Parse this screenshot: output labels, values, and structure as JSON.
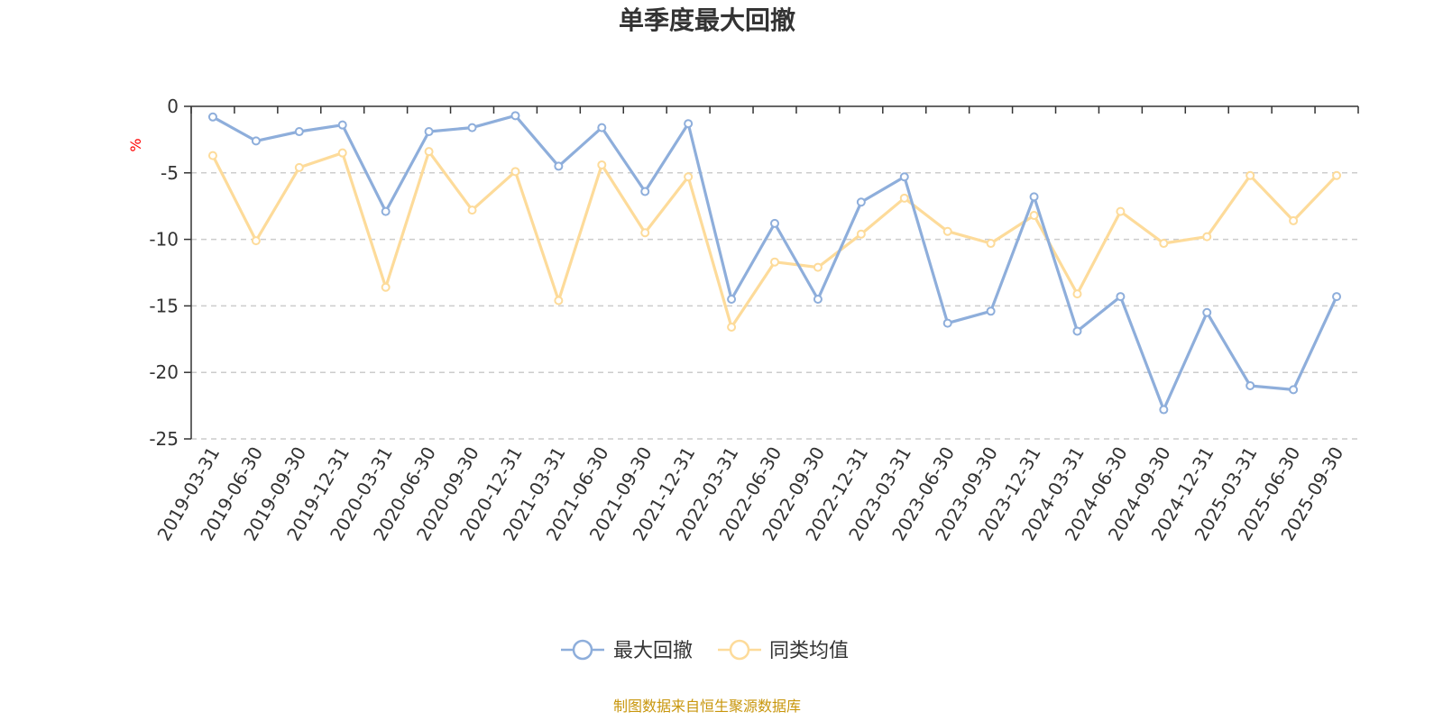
{
  "chart_data": {
    "type": "line",
    "title": "单季度最大回撤",
    "ylabel": "%",
    "xlabel": "",
    "ylim": [
      -25,
      0
    ],
    "yticks": [
      0,
      -5,
      -10,
      -15,
      -20,
      -25
    ],
    "grid": "horizontal-dashed",
    "legend_position": "bottom-center",
    "categories": [
      "2019-03-31",
      "2019-06-30",
      "2019-09-30",
      "2019-12-31",
      "2020-03-31",
      "2020-06-30",
      "2020-09-30",
      "2020-12-31",
      "2021-03-31",
      "2021-06-30",
      "2021-09-30",
      "2021-12-31",
      "2022-03-31",
      "2022-06-30",
      "2022-09-30",
      "2022-12-31",
      "2023-03-31",
      "2023-06-30",
      "2023-09-30",
      "2023-12-31",
      "2024-03-31",
      "2024-06-30",
      "2024-09-30",
      "2024-12-31",
      "2025-03-31",
      "2025-06-30",
      "2025-09-30"
    ],
    "series": [
      {
        "name": "最大回撤",
        "color": "#8eaedb",
        "values": [
          -0.8,
          -2.6,
          -1.9,
          -1.4,
          -7.9,
          -1.9,
          -1.6,
          -0.7,
          -4.5,
          -1.6,
          -6.4,
          -1.3,
          -14.5,
          -8.8,
          -14.5,
          -7.2,
          -5.3,
          -16.3,
          -15.4,
          -6.8,
          -16.9,
          -14.3,
          -22.8,
          -15.5,
          -21.0,
          -21.3,
          -14.3
        ]
      },
      {
        "name": "同类均值",
        "color": "#fddb9a",
        "values": [
          -3.7,
          -10.1,
          -4.6,
          -3.5,
          -13.6,
          -3.4,
          -7.8,
          -4.9,
          -14.6,
          -4.4,
          -9.5,
          -5.3,
          -16.6,
          -11.7,
          -12.1,
          -9.6,
          -6.9,
          -9.4,
          -10.3,
          -8.2,
          -14.1,
          -7.9,
          -10.3,
          -9.8,
          -5.2,
          -8.6,
          -5.2
        ]
      }
    ]
  },
  "source_note": "制图数据来自恒生聚源数据库",
  "colors": {
    "axis": "#333333",
    "grid": "#cccccc",
    "source": "#c8960c",
    "ylabel": "#ff0000"
  }
}
